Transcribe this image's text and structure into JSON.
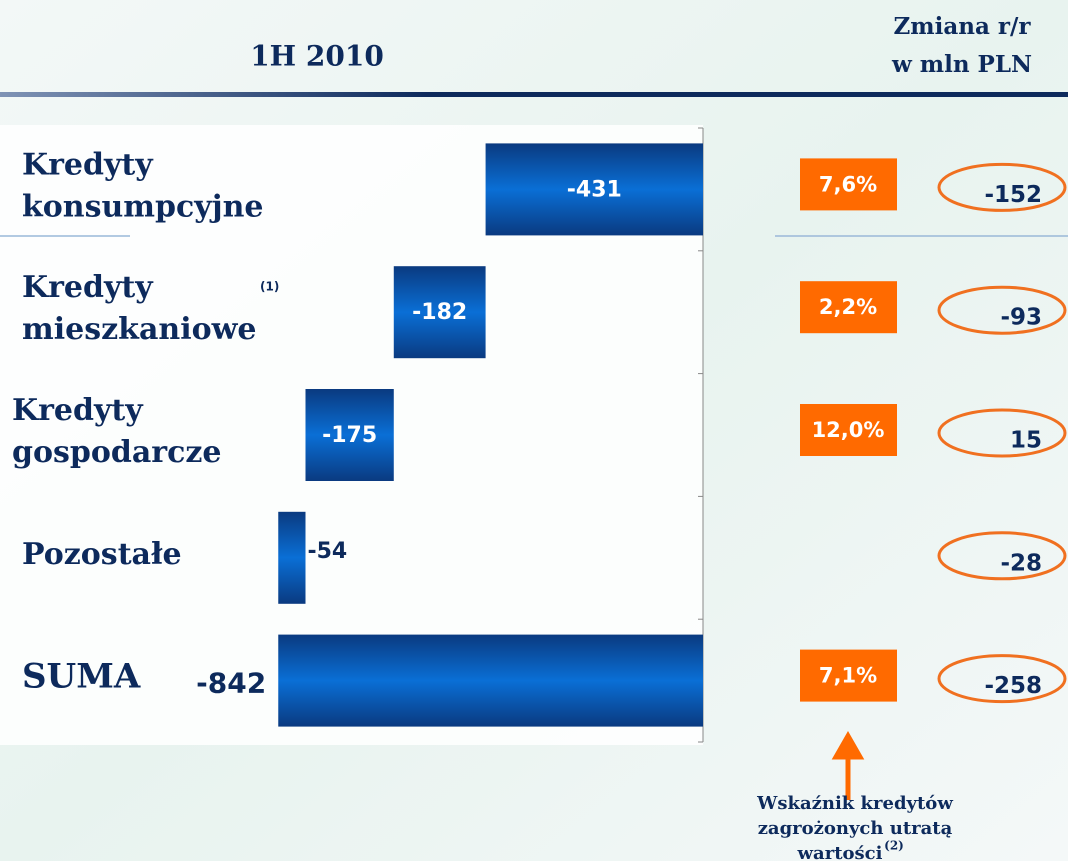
{
  "chart_data": {
    "type": "waterfall",
    "title": "1H 2010",
    "right_header": [
      "Zmiana r/r",
      "w mln PLN"
    ],
    "categories": [
      [
        "Kredyty",
        "konsumpcyjne"
      ],
      [
        "Kredyty",
        "mieszkaniowe"
      ],
      [
        "Kredyty",
        "gospodarcze"
      ],
      [
        "Pozostałe"
      ],
      [
        "SUMA"
      ]
    ],
    "category_notes": [
      null,
      "(1)",
      null,
      null,
      null
    ],
    "values": [
      -431,
      -182,
      -175,
      -54,
      -842
    ],
    "is_total": [
      false,
      false,
      false,
      false,
      true
    ],
    "color": [
      "#0a3a80",
      "#0a6fd6"
    ],
    "xlim": [
      -900,
      0
    ],
    "npl_ratio": {
      "values": [
        7.6,
        2.2,
        12.0,
        null,
        7.1
      ],
      "value_labels": [
        "7,6%",
        "2,2%",
        "12,0%",
        null,
        "7,1%"
      ],
      "color": "#ff6a00"
    },
    "change_yoy": {
      "values": [
        -152,
        -93,
        15,
        -28,
        -258
      ],
      "color": "#f07020"
    },
    "annotation": [
      "Wskaźnik kredytów",
      "zagrożonych utratą",
      "wartości"
    ],
    "annotation_note": "(2)"
  }
}
